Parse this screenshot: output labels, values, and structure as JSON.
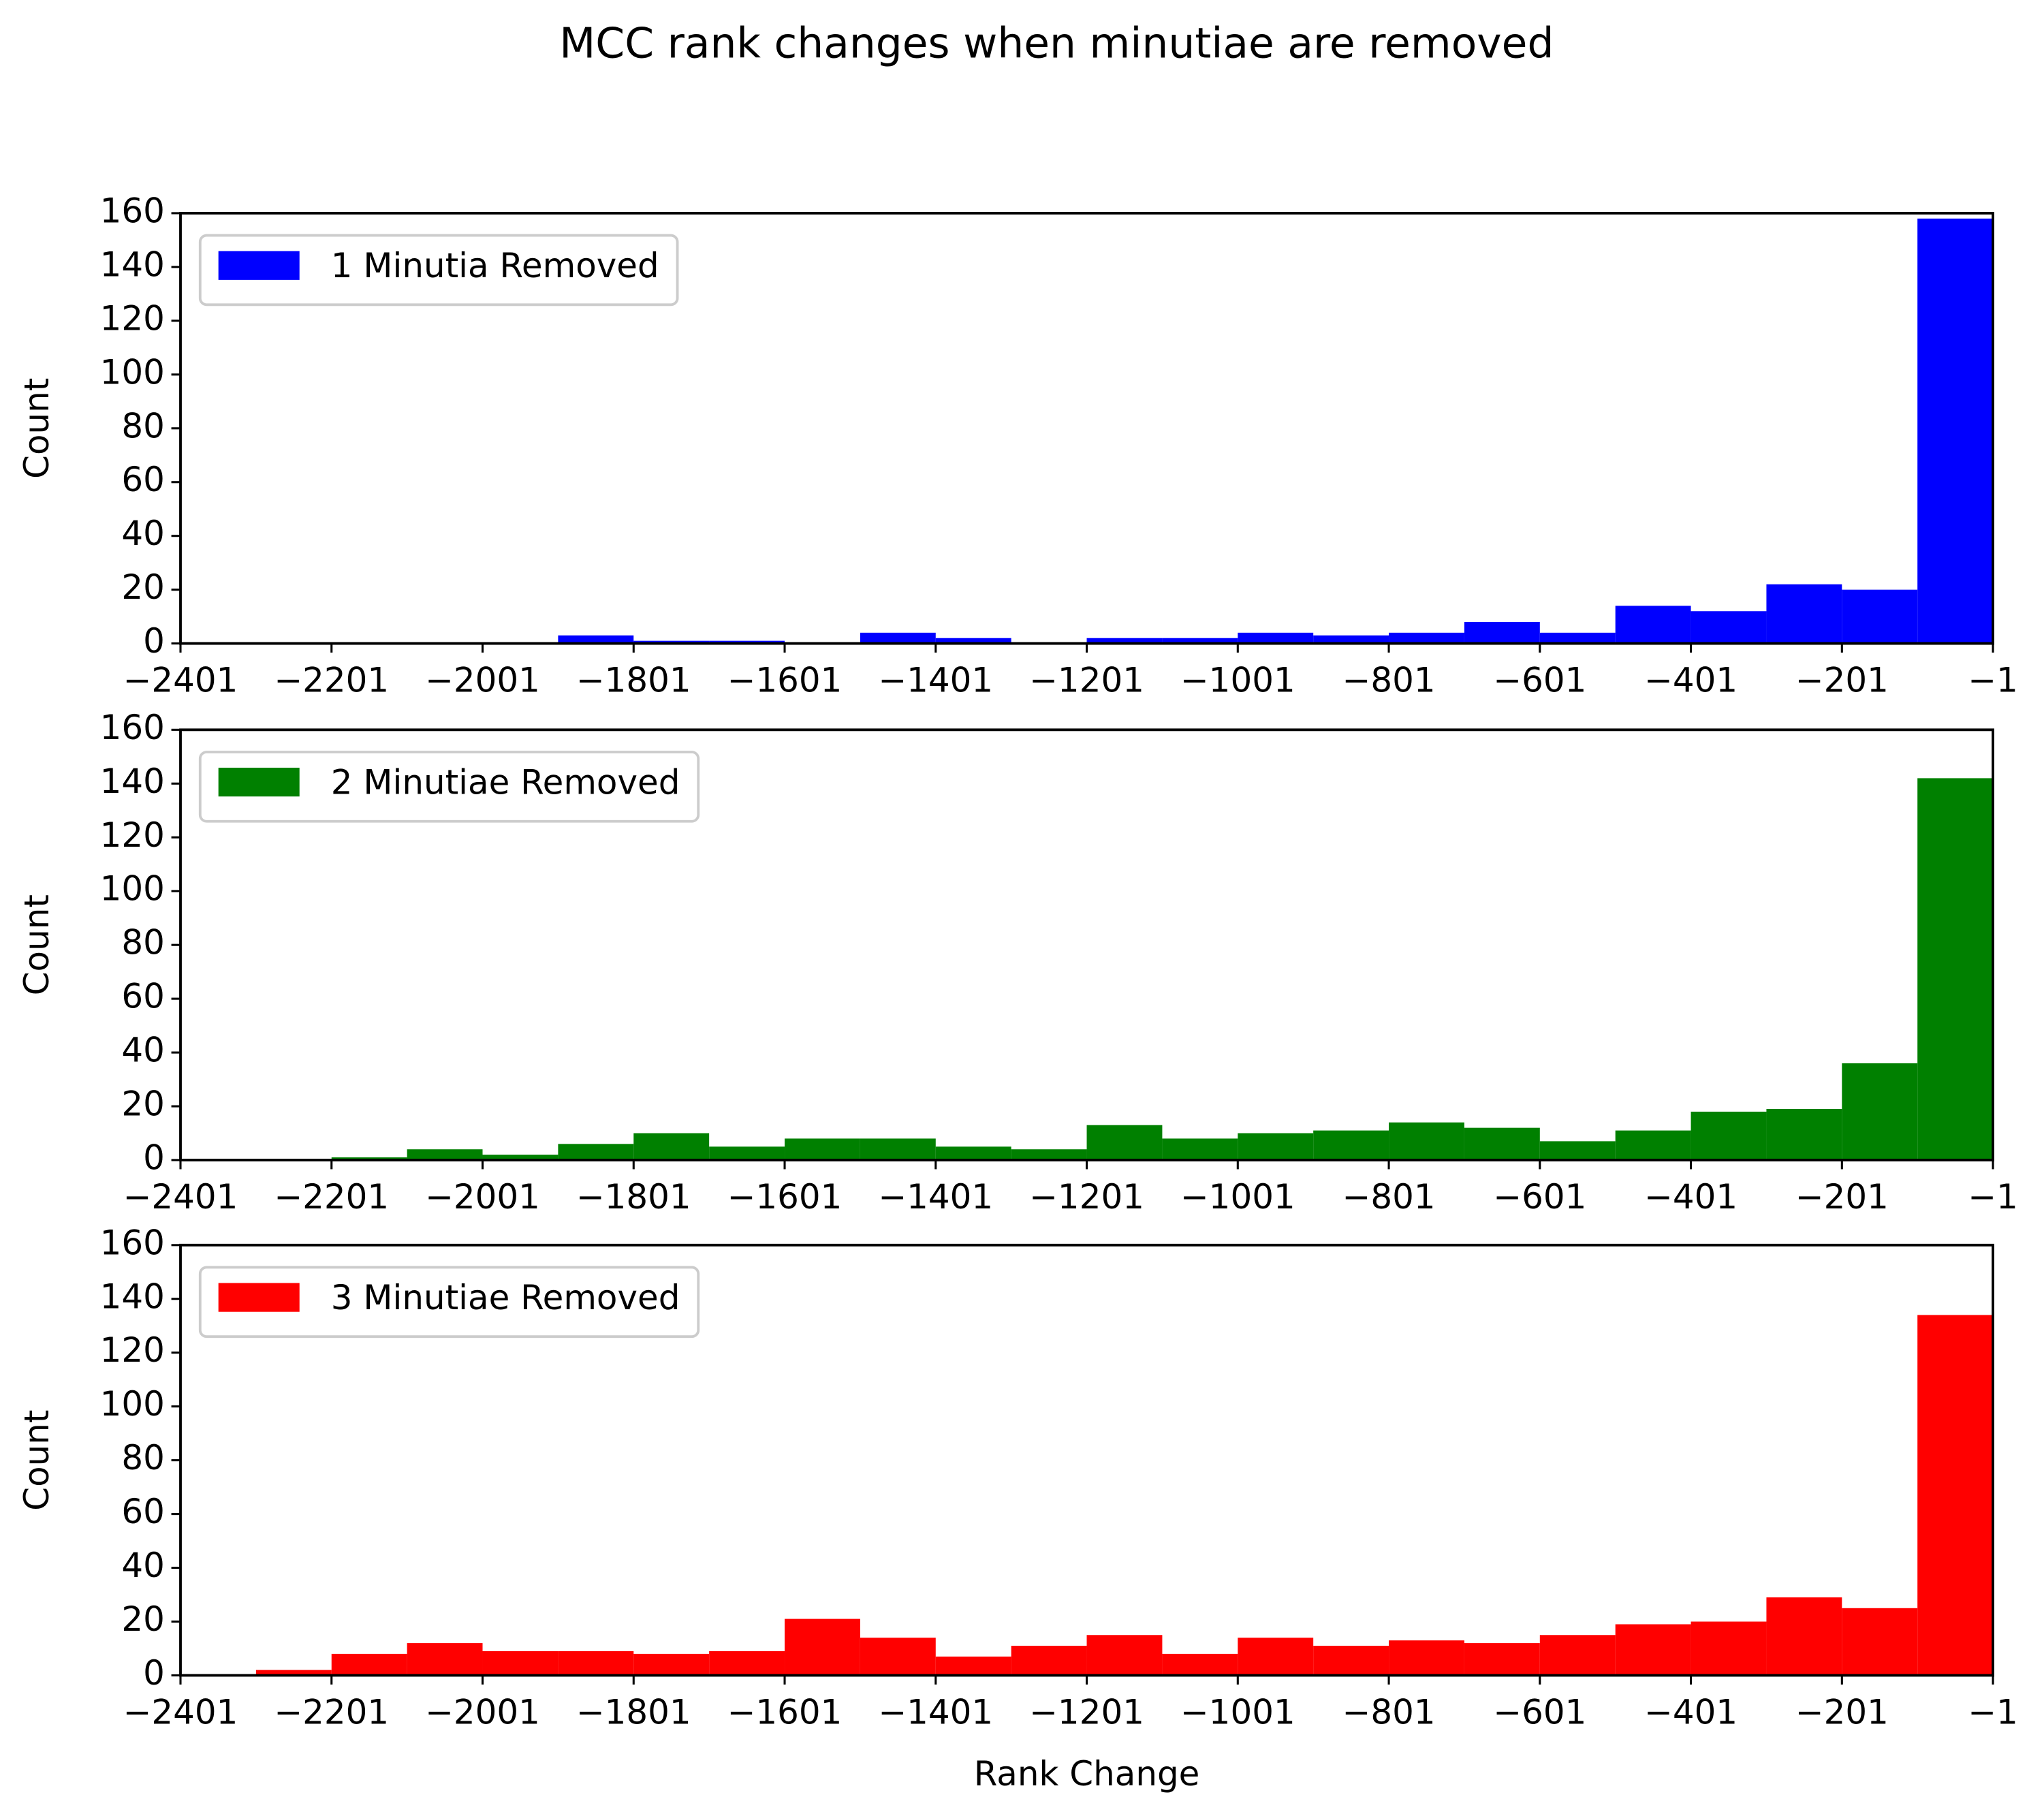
{
  "title": "MCC rank changes when minutiae are removed",
  "chart_data": [
    {
      "type": "histogram",
      "ylabel": "Count",
      "legend": "upper left",
      "bins": [
        -2401,
        -2301,
        -2201,
        -2101,
        -2001,
        -1901,
        -1801,
        -1701,
        -1601,
        -1501,
        -1401,
        -1301,
        -1201,
        -1101,
        -1001,
        -901,
        -801,
        -701,
        -601,
        -501,
        -401,
        -301,
        -201,
        -101,
        -1
      ],
      "series": [
        {
          "name": "1 Minutia Removed",
          "color": "#0000ff",
          "values": [
            0,
            0,
            0,
            0,
            0,
            3,
            1,
            1,
            0,
            4,
            2,
            0,
            2,
            2,
            4,
            3,
            4,
            8,
            4,
            14,
            12,
            22,
            20,
            158
          ]
        }
      ],
      "xlim": [
        -2401,
        -1
      ],
      "ylim": [
        0,
        160
      ],
      "xticks": [
        {
          "value": -2401,
          "label": "−2401"
        },
        {
          "value": -2201,
          "label": "−2201"
        },
        {
          "value": -2001,
          "label": "−2001"
        },
        {
          "value": -1801,
          "label": "−1801"
        },
        {
          "value": -1601,
          "label": "−1601"
        },
        {
          "value": -1401,
          "label": "−1401"
        },
        {
          "value": -1201,
          "label": "−1201"
        },
        {
          "value": -1001,
          "label": "−1001"
        },
        {
          "value": -801,
          "label": "−801"
        },
        {
          "value": -601,
          "label": "−601"
        },
        {
          "value": -401,
          "label": "−401"
        },
        {
          "value": -201,
          "label": "−201"
        },
        {
          "value": -1,
          "label": "−1"
        }
      ],
      "yticks": [
        0,
        20,
        40,
        60,
        80,
        100,
        120,
        140,
        160
      ]
    },
    {
      "type": "histogram",
      "ylabel": "Count",
      "legend": "upper left",
      "bins": [
        -2401,
        -2301,
        -2201,
        -2101,
        -2001,
        -1901,
        -1801,
        -1701,
        -1601,
        -1501,
        -1401,
        -1301,
        -1201,
        -1101,
        -1001,
        -901,
        -801,
        -701,
        -601,
        -501,
        -401,
        -301,
        -201,
        -101,
        -1
      ],
      "series": [
        {
          "name": "2 Minutiae Removed",
          "color": "#008000",
          "values": [
            0,
            0,
            1,
            4,
            2,
            6,
            10,
            5,
            8,
            8,
            5,
            4,
            13,
            8,
            10,
            11,
            14,
            12,
            7,
            11,
            18,
            19,
            36,
            142
          ]
        }
      ],
      "xlim": [
        -2401,
        -1
      ],
      "ylim": [
        0,
        160
      ],
      "xticks": [
        {
          "value": -2401,
          "label": "−2401"
        },
        {
          "value": -2201,
          "label": "−2201"
        },
        {
          "value": -2001,
          "label": "−2001"
        },
        {
          "value": -1801,
          "label": "−1801"
        },
        {
          "value": -1601,
          "label": "−1601"
        },
        {
          "value": -1401,
          "label": "−1401"
        },
        {
          "value": -1201,
          "label": "−1201"
        },
        {
          "value": -1001,
          "label": "−1001"
        },
        {
          "value": -801,
          "label": "−801"
        },
        {
          "value": -601,
          "label": "−601"
        },
        {
          "value": -401,
          "label": "−401"
        },
        {
          "value": -201,
          "label": "−201"
        },
        {
          "value": -1,
          "label": "−1"
        }
      ],
      "yticks": [
        0,
        20,
        40,
        60,
        80,
        100,
        120,
        140,
        160
      ]
    },
    {
      "type": "histogram",
      "ylabel": "Count",
      "xlabel": "Rank Change",
      "legend": "upper left",
      "bins": [
        -2401,
        -2301,
        -2201,
        -2101,
        -2001,
        -1901,
        -1801,
        -1701,
        -1601,
        -1501,
        -1401,
        -1301,
        -1201,
        -1101,
        -1001,
        -901,
        -801,
        -701,
        -601,
        -501,
        -401,
        -301,
        -201,
        -101,
        -1
      ],
      "series": [
        {
          "name": "3 Minutiae Removed",
          "color": "#ff0000",
          "values": [
            0,
            2,
            8,
            12,
            9,
            9,
            8,
            9,
            21,
            14,
            7,
            11,
            15,
            8,
            14,
            11,
            13,
            12,
            15,
            19,
            20,
            29,
            25,
            134
          ]
        }
      ],
      "xlim": [
        -2401,
        -1
      ],
      "ylim": [
        0,
        160
      ],
      "xticks": [
        {
          "value": -2401,
          "label": "−2401"
        },
        {
          "value": -2201,
          "label": "−2201"
        },
        {
          "value": -2001,
          "label": "−2001"
        },
        {
          "value": -1801,
          "label": "−1801"
        },
        {
          "value": -1601,
          "label": "−1601"
        },
        {
          "value": -1401,
          "label": "−1401"
        },
        {
          "value": -1201,
          "label": "−1201"
        },
        {
          "value": -1001,
          "label": "−1001"
        },
        {
          "value": -801,
          "label": "−801"
        },
        {
          "value": -601,
          "label": "−601"
        },
        {
          "value": -401,
          "label": "−401"
        },
        {
          "value": -201,
          "label": "−201"
        },
        {
          "value": -1,
          "label": "−1"
        }
      ],
      "yticks": [
        0,
        20,
        40,
        60,
        80,
        100,
        120,
        140,
        160
      ]
    }
  ]
}
